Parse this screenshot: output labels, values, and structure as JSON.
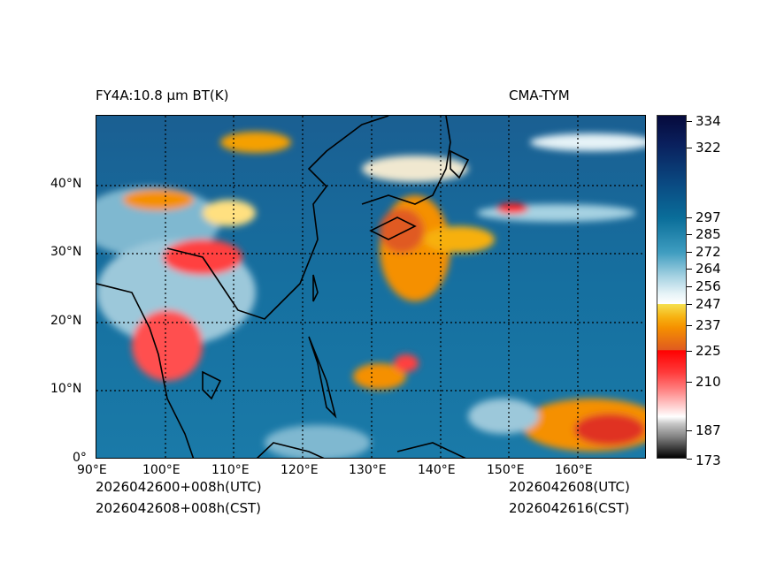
{
  "title_left": "FY4A:10.8 µm BT(K)",
  "title_right": "CMA-TYM",
  "x_ticks": [
    "90°E",
    "100°E",
    "110°E",
    "120°E",
    "130°E",
    "140°E",
    "150°E",
    "160°E"
  ],
  "y_ticks": [
    "0°",
    "10°N",
    "20°N",
    "30°N",
    "40°N"
  ],
  "colorbar": {
    "label_units": "K",
    "ticks": [
      "334",
      "322",
      "297",
      "285",
      "272",
      "264",
      "256",
      "247",
      "237",
      "225",
      "210",
      "187",
      "173"
    ]
  },
  "footer": {
    "init_utc": "2026042600+008h(UTC)",
    "init_cst": "2026042608+008h(CST)",
    "valid_utc": "2026042608(UTC)",
    "valid_cst": "2026042616(CST)"
  }
}
